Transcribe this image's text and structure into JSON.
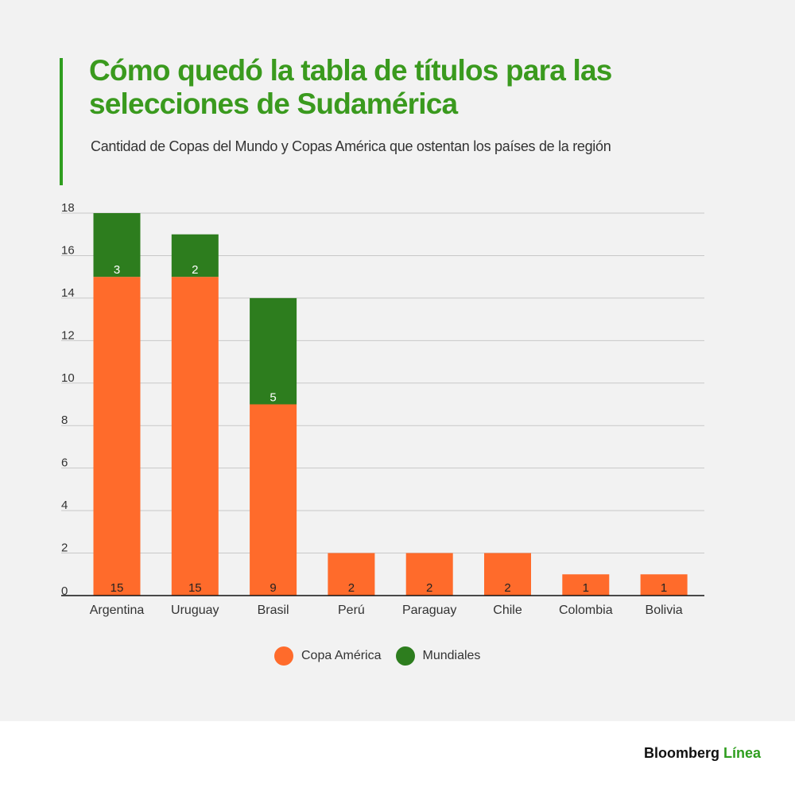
{
  "header": {
    "title": "Cómo quedó la tabla de títulos para las selecciones de Sudamérica",
    "subtitle": "Cantidad de Copas del Mundo y Copas América que ostentan los países de la región"
  },
  "colors": {
    "accent": "#2f9e1f",
    "copa_america": "#ff6b2b",
    "mundiales": "#2d7d1e",
    "panel": "#f2f2f2"
  },
  "chart_data": {
    "type": "bar",
    "stacked": true,
    "categories": [
      "Argentina",
      "Uruguay",
      "Brasil",
      "Perú",
      "Paraguay",
      "Chile",
      "Colombia",
      "Bolivia"
    ],
    "series": [
      {
        "name": "Copa América",
        "color": "#ff6b2b",
        "values": [
          15,
          15,
          9,
          2,
          2,
          2,
          1,
          1
        ]
      },
      {
        "name": "Mundiales",
        "color": "#2d7d1e",
        "values": [
          3,
          2,
          5,
          0,
          0,
          0,
          0,
          0
        ]
      }
    ],
    "ylim": [
      0,
      18
    ],
    "yticks": [
      0,
      2,
      4,
      6,
      8,
      10,
      12,
      14,
      16,
      18
    ],
    "grid": true,
    "legend_position": "bottom-center"
  },
  "legend": {
    "items": [
      {
        "label": "Copa América",
        "color": "#ff6b2b"
      },
      {
        "label": "Mundiales",
        "color": "#2d7d1e"
      }
    ]
  },
  "footer": {
    "brand_main": "Bloomberg",
    "brand_accent": "Línea"
  }
}
